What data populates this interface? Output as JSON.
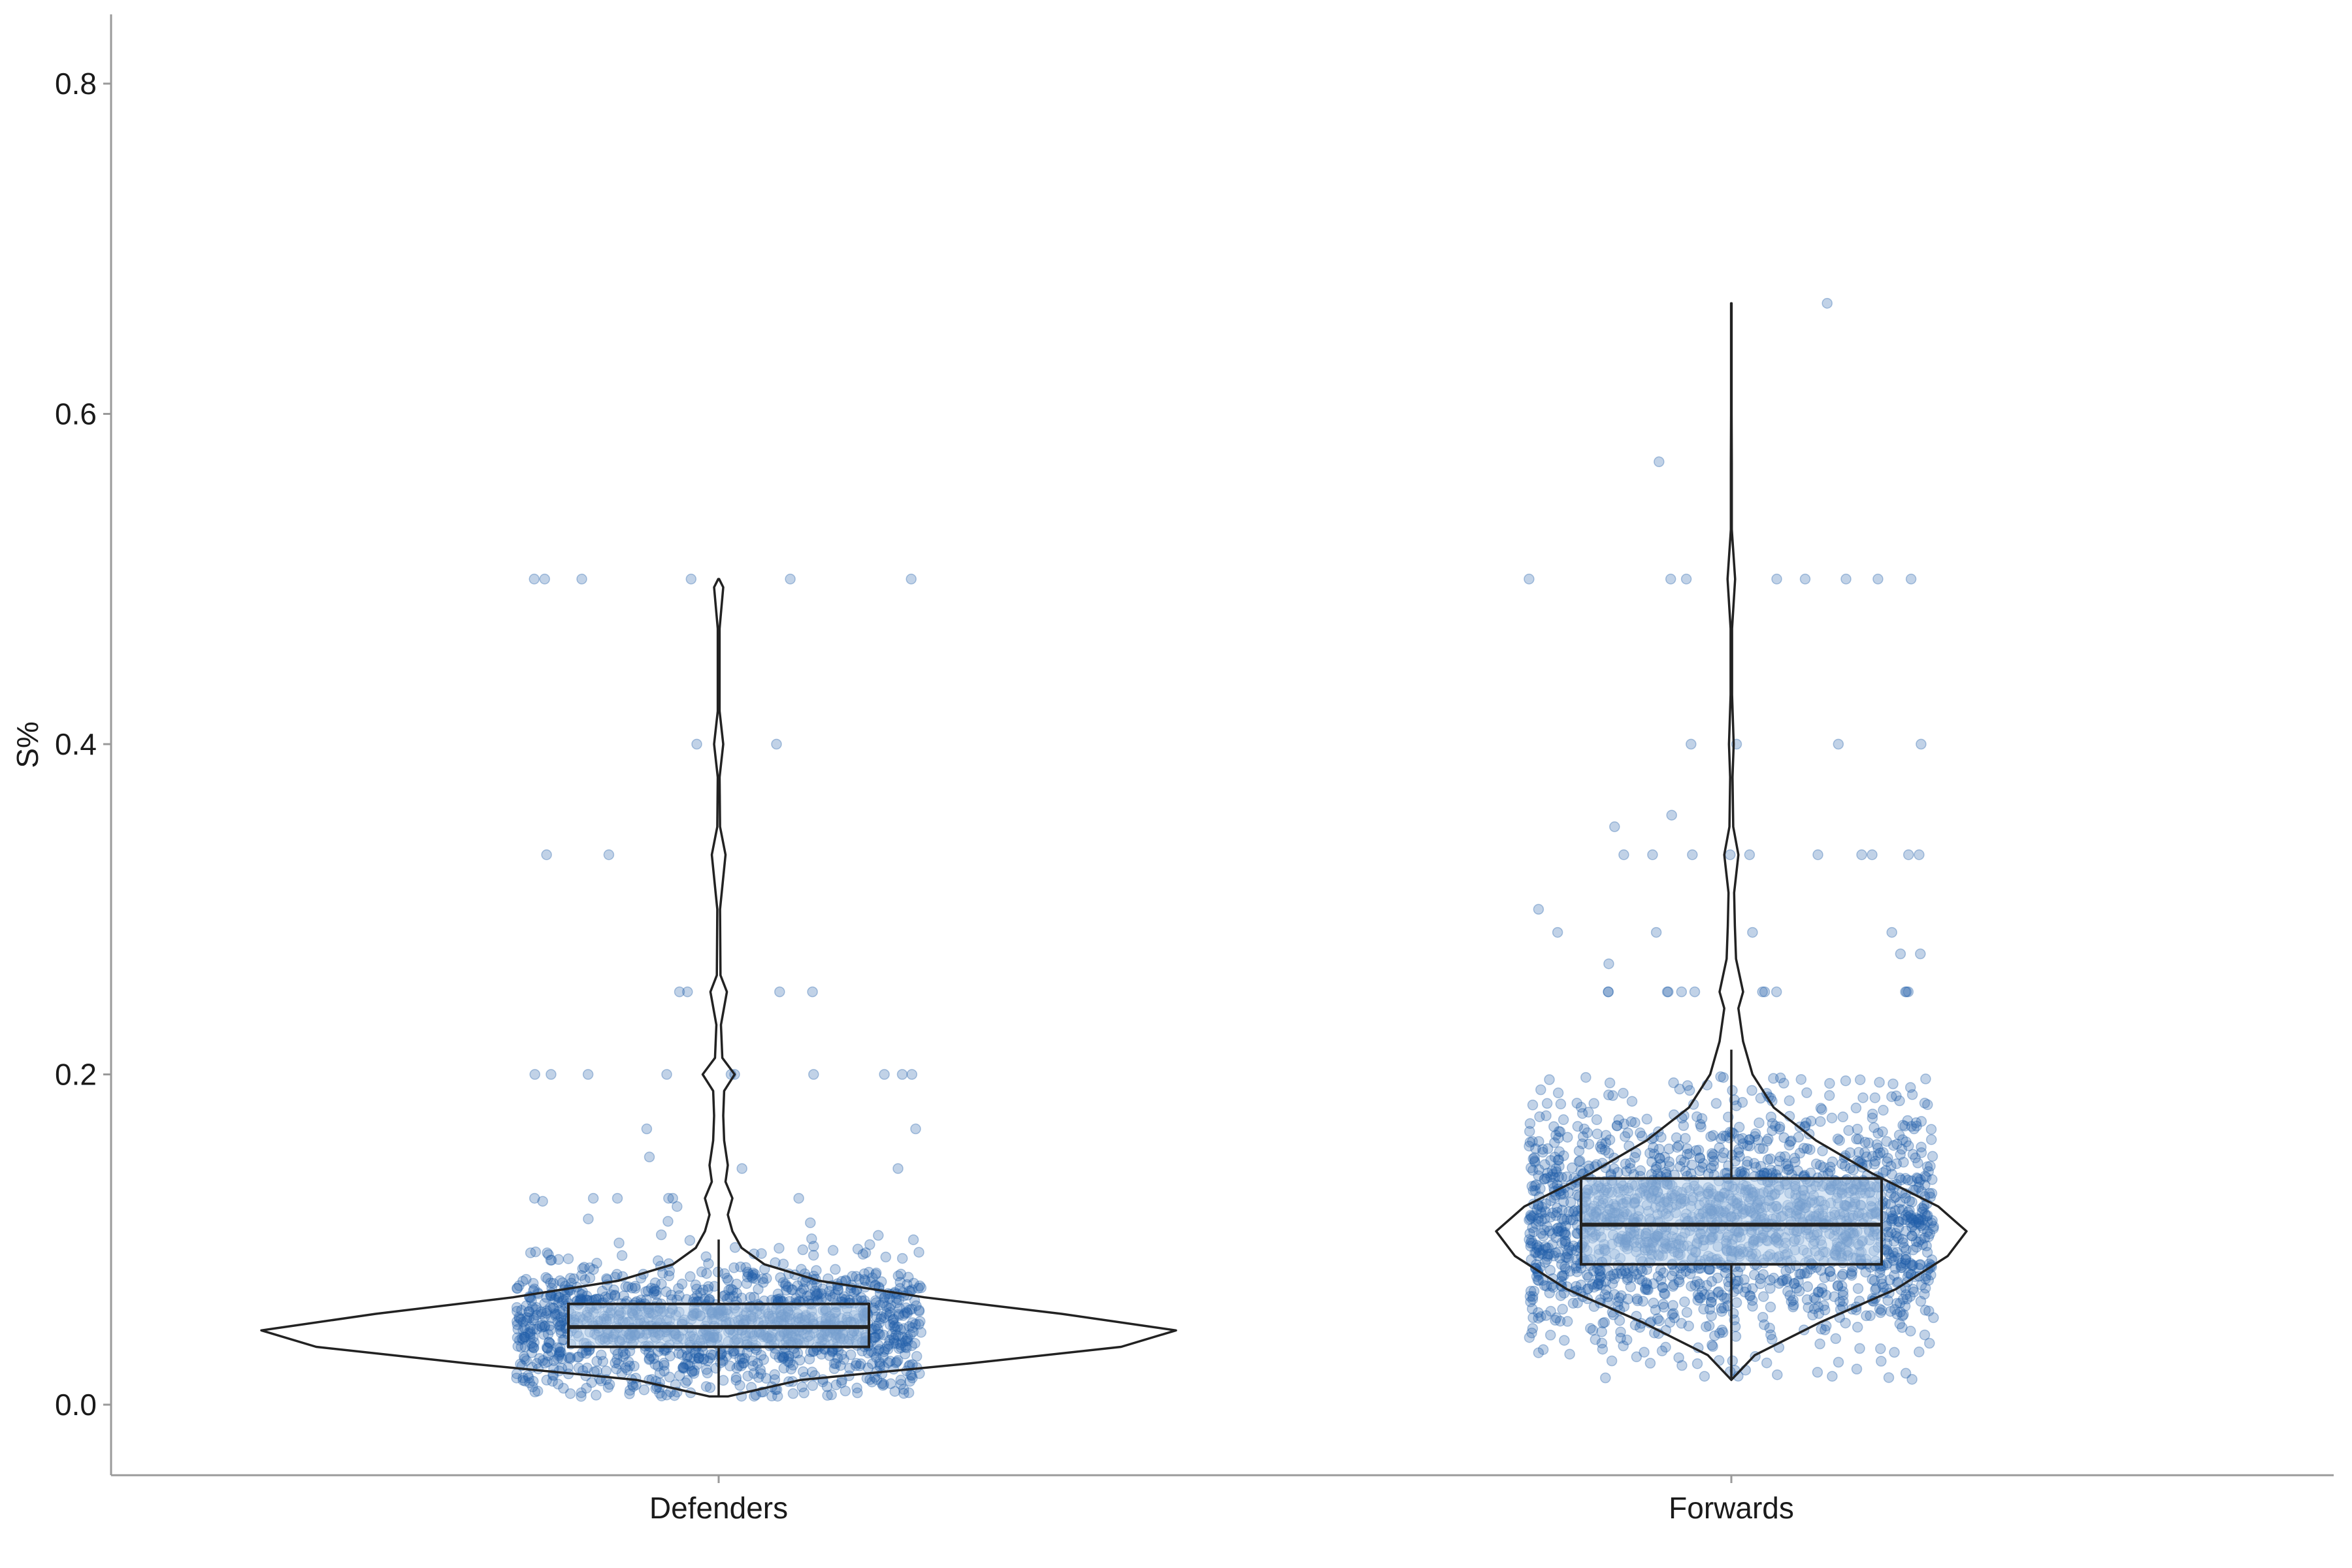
{
  "chart_data": {
    "type": "violin",
    "title": "",
    "xlabel": "",
    "ylabel": "S%",
    "ylim": [
      -0.04,
      0.84
    ],
    "y_ticks": [
      0.0,
      0.2,
      0.4,
      0.6,
      0.8
    ],
    "y_tick_labels": [
      "0.0",
      "0.2",
      "0.4",
      "0.6",
      "0.8"
    ],
    "categories": [
      "Defenders",
      "Forwards"
    ],
    "grid": false,
    "legend": "none",
    "colors": {
      "points": "#1f5fa8",
      "box_fill": "#bcd3ec",
      "outline": "#222222",
      "axis": "#9a9a9a"
    },
    "groups": [
      {
        "name": "Defenders",
        "box": {
          "q1": 0.035,
          "median": 0.047,
          "q3": 0.061
        },
        "range": [
          0.005,
          0.5
        ],
        "violin_profile": [
          [
            0.005,
            0.02
          ],
          [
            0.015,
            0.18
          ],
          [
            0.025,
            0.55
          ],
          [
            0.035,
            0.88
          ],
          [
            0.045,
            1.0
          ],
          [
            0.055,
            0.75
          ],
          [
            0.065,
            0.45
          ],
          [
            0.075,
            0.22
          ],
          [
            0.085,
            0.1
          ],
          [
            0.095,
            0.05
          ],
          [
            0.105,
            0.03
          ],
          [
            0.115,
            0.02
          ],
          [
            0.125,
            0.03
          ],
          [
            0.135,
            0.015
          ],
          [
            0.145,
            0.02
          ],
          [
            0.16,
            0.012
          ],
          [
            0.175,
            0.01
          ],
          [
            0.19,
            0.012
          ],
          [
            0.2,
            0.035
          ],
          [
            0.21,
            0.008
          ],
          [
            0.23,
            0.005
          ],
          [
            0.25,
            0.018
          ],
          [
            0.26,
            0.004
          ],
          [
            0.3,
            0.003
          ],
          [
            0.333,
            0.015
          ],
          [
            0.35,
            0.003
          ],
          [
            0.38,
            0.002
          ],
          [
            0.4,
            0.01
          ],
          [
            0.42,
            0.002
          ],
          [
            0.47,
            0.002
          ],
          [
            0.495,
            0.01
          ],
          [
            0.5,
            0.001
          ]
        ],
        "points": {
          "count": 1400,
          "center": 0.047,
          "spread": 0.02,
          "outliers": [
            0.5,
            0.5,
            0.5,
            0.5,
            0.5,
            0.5,
            0.4,
            0.4,
            0.333,
            0.333,
            0.25,
            0.25,
            0.25,
            0.25,
            0.2,
            0.2,
            0.2,
            0.2,
            0.2,
            0.2,
            0.2,
            0.2,
            0.2,
            0.2,
            0.167,
            0.167,
            0.15,
            0.143,
            0.143,
            0.125,
            0.125,
            0.125,
            0.125,
            0.125,
            0.125,
            0.12,
            0.111
          ]
        }
      },
      {
        "name": "Forwards",
        "box": {
          "q1": 0.085,
          "median": 0.109,
          "q3": 0.137
        },
        "range": [
          0.015,
          0.667
        ],
        "violin_profile": [
          [
            0.015,
            0.0
          ],
          [
            0.03,
            0.1
          ],
          [
            0.05,
            0.38
          ],
          [
            0.07,
            0.7
          ],
          [
            0.09,
            0.92
          ],
          [
            0.105,
            1.0
          ],
          [
            0.12,
            0.88
          ],
          [
            0.14,
            0.6
          ],
          [
            0.16,
            0.36
          ],
          [
            0.18,
            0.18
          ],
          [
            0.2,
            0.09
          ],
          [
            0.22,
            0.05
          ],
          [
            0.24,
            0.03
          ],
          [
            0.25,
            0.05
          ],
          [
            0.27,
            0.02
          ],
          [
            0.29,
            0.015
          ],
          [
            0.31,
            0.012
          ],
          [
            0.333,
            0.03
          ],
          [
            0.35,
            0.008
          ],
          [
            0.38,
            0.005
          ],
          [
            0.4,
            0.01
          ],
          [
            0.43,
            0.003
          ],
          [
            0.47,
            0.003
          ],
          [
            0.5,
            0.016
          ],
          [
            0.53,
            0.002
          ],
          [
            0.57,
            0.002
          ],
          [
            0.6,
            0.001
          ],
          [
            0.667,
            0.001
          ]
        ],
        "points": {
          "count": 2000,
          "center": 0.11,
          "spread": 0.035,
          "outliers": [
            0.667,
            0.571,
            0.5,
            0.5,
            0.5,
            0.5,
            0.5,
            0.5,
            0.5,
            0.5,
            0.4,
            0.4,
            0.4,
            0.4,
            0.357,
            0.35,
            0.333,
            0.333,
            0.333,
            0.333,
            0.333,
            0.333,
            0.333,
            0.333,
            0.333,
            0.333,
            0.3,
            0.286,
            0.286,
            0.286,
            0.286,
            0.273,
            0.273,
            0.267,
            0.25,
            0.25,
            0.25,
            0.25,
            0.25,
            0.25,
            0.25,
            0.25,
            0.25,
            0.25,
            0.25,
            0.25
          ]
        }
      }
    ]
  }
}
